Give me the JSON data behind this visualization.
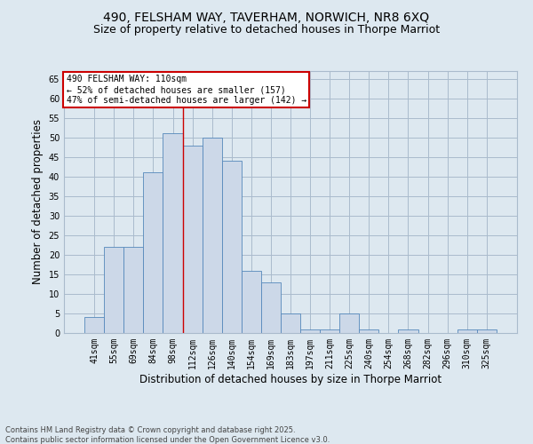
{
  "title_line1": "490, FELSHAM WAY, TAVERHAM, NORWICH, NR8 6XQ",
  "title_line2": "Size of property relative to detached houses in Thorpe Marriot",
  "xlabel": "Distribution of detached houses by size in Thorpe Marriot",
  "ylabel": "Number of detached properties",
  "categories": [
    "41sqm",
    "55sqm",
    "69sqm",
    "84sqm",
    "98sqm",
    "112sqm",
    "126sqm",
    "140sqm",
    "154sqm",
    "169sqm",
    "183sqm",
    "197sqm",
    "211sqm",
    "225sqm",
    "240sqm",
    "254sqm",
    "268sqm",
    "282sqm",
    "296sqm",
    "310sqm",
    "325sqm"
  ],
  "values": [
    4,
    22,
    22,
    41,
    51,
    48,
    50,
    44,
    16,
    13,
    5,
    1,
    1,
    5,
    1,
    0,
    1,
    0,
    0,
    1,
    1
  ],
  "bar_color": "#ccd8e8",
  "bar_edge_color": "#5588bb",
  "grid_color": "#aabbcc",
  "bg_color": "#dde8f0",
  "annotation_text": "490 FELSHAM WAY: 110sqm\n← 52% of detached houses are smaller (157)\n47% of semi-detached houses are larger (142) →",
  "annotation_box_color": "#ffffff",
  "annotation_box_edge": "#cc0000",
  "vline_x_index": 4.5,
  "ylim": [
    0,
    67
  ],
  "yticks": [
    0,
    5,
    10,
    15,
    20,
    25,
    30,
    35,
    40,
    45,
    50,
    55,
    60,
    65
  ],
  "footer_line1": "Contains HM Land Registry data © Crown copyright and database right 2025.",
  "footer_line2": "Contains public sector information licensed under the Open Government Licence v3.0.",
  "title_fontsize": 10,
  "subtitle_fontsize": 9,
  "tick_fontsize": 7,
  "label_fontsize": 8.5,
  "annotation_fontsize": 7,
  "footer_fontsize": 6
}
